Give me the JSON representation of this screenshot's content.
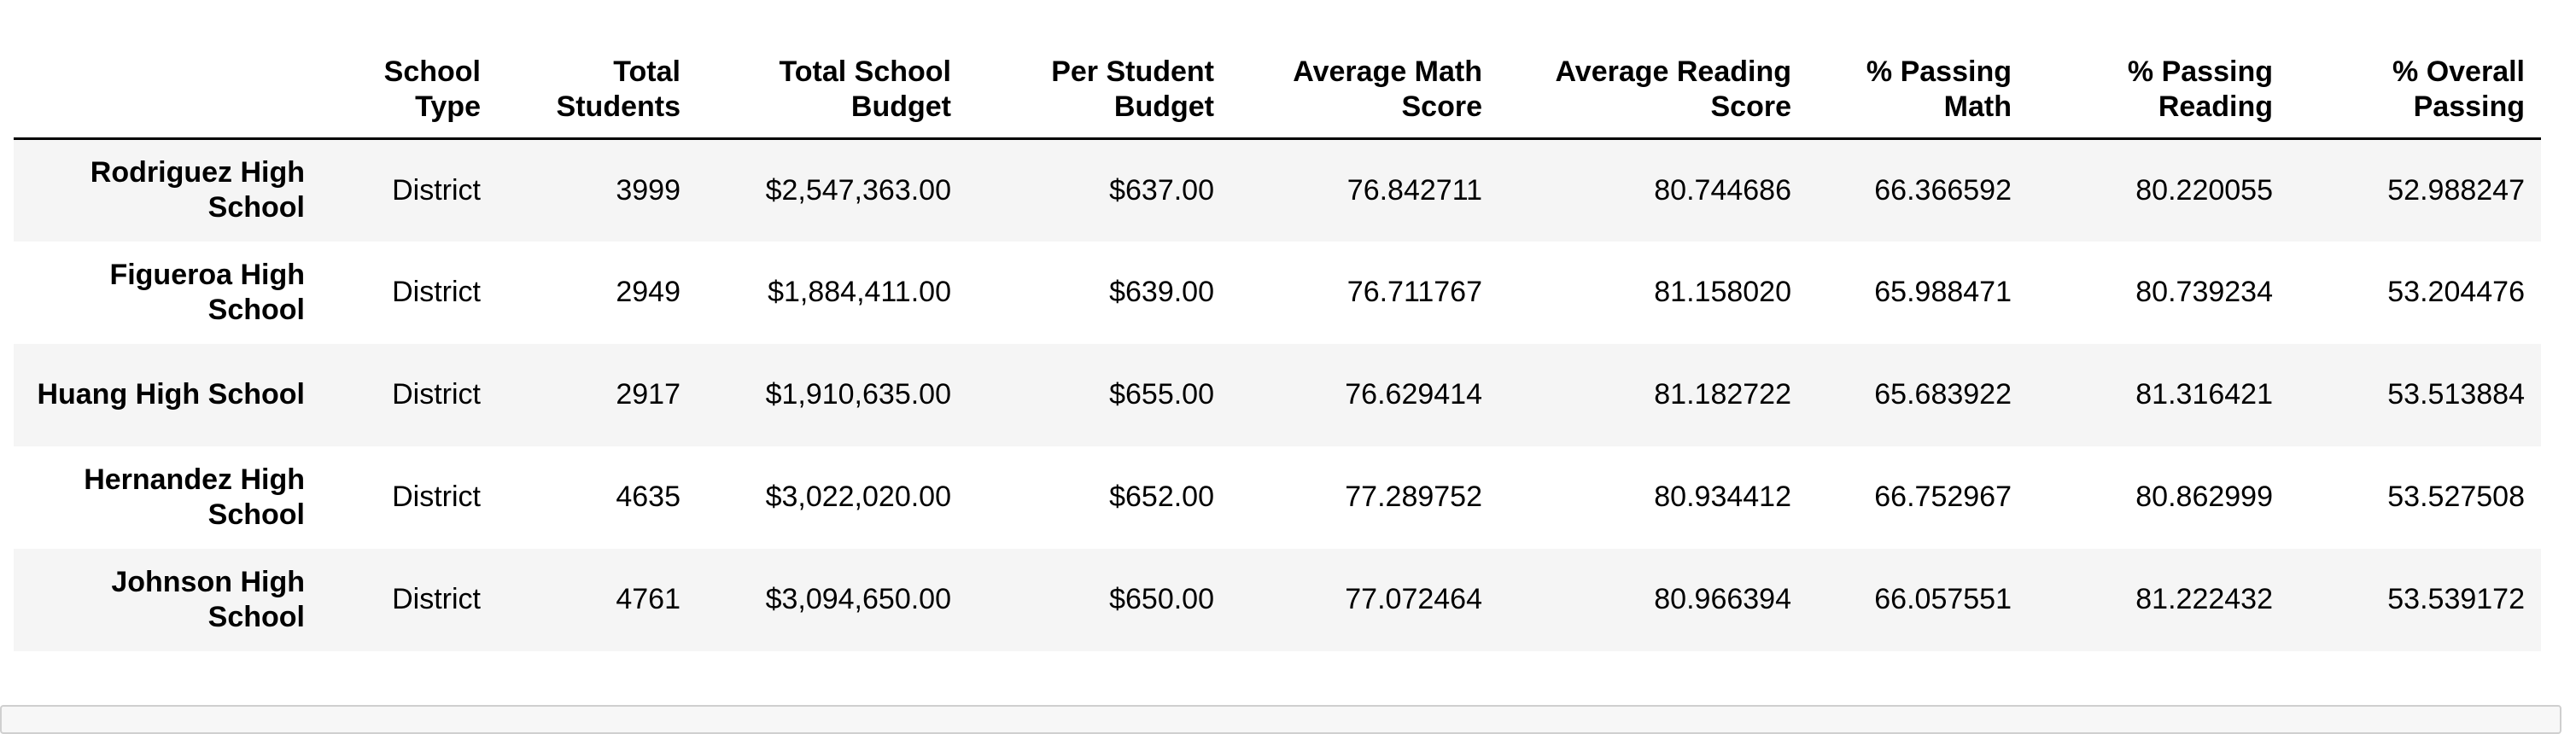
{
  "table": {
    "index_header": "",
    "columns": [
      "School Type",
      "Total Students",
      "Total School Budget",
      "Per Student Budget",
      "Average Math Score",
      "Average Reading Score",
      "% Passing Math",
      "% Passing Reading",
      "% Overall Passing"
    ],
    "rows": [
      {
        "school": "Rodriguez High School",
        "cells": [
          "District",
          "3999",
          "$2,547,363.00",
          "$637.00",
          "76.842711",
          "80.744686",
          "66.366592",
          "80.220055",
          "52.988247"
        ]
      },
      {
        "school": "Figueroa High School",
        "cells": [
          "District",
          "2949",
          "$1,884,411.00",
          "$639.00",
          "76.711767",
          "81.158020",
          "65.988471",
          "80.739234",
          "53.204476"
        ]
      },
      {
        "school": "Huang High School",
        "cells": [
          "District",
          "2917",
          "$1,910,635.00",
          "$655.00",
          "76.629414",
          "81.182722",
          "65.683922",
          "81.316421",
          "53.513884"
        ]
      },
      {
        "school": "Hernandez High School",
        "cells": [
          "District",
          "4635",
          "$3,022,020.00",
          "$652.00",
          "77.289752",
          "80.934412",
          "66.752967",
          "80.862999",
          "53.527508"
        ]
      },
      {
        "school": "Johnson High School",
        "cells": [
          "District",
          "4761",
          "$3,094,650.00",
          "$650.00",
          "77.072464",
          "80.966394",
          "66.057551",
          "81.222432",
          "53.539172"
        ]
      }
    ]
  },
  "colors": {
    "striped_row": "#f5f5f5",
    "header_rule": "#000000"
  }
}
